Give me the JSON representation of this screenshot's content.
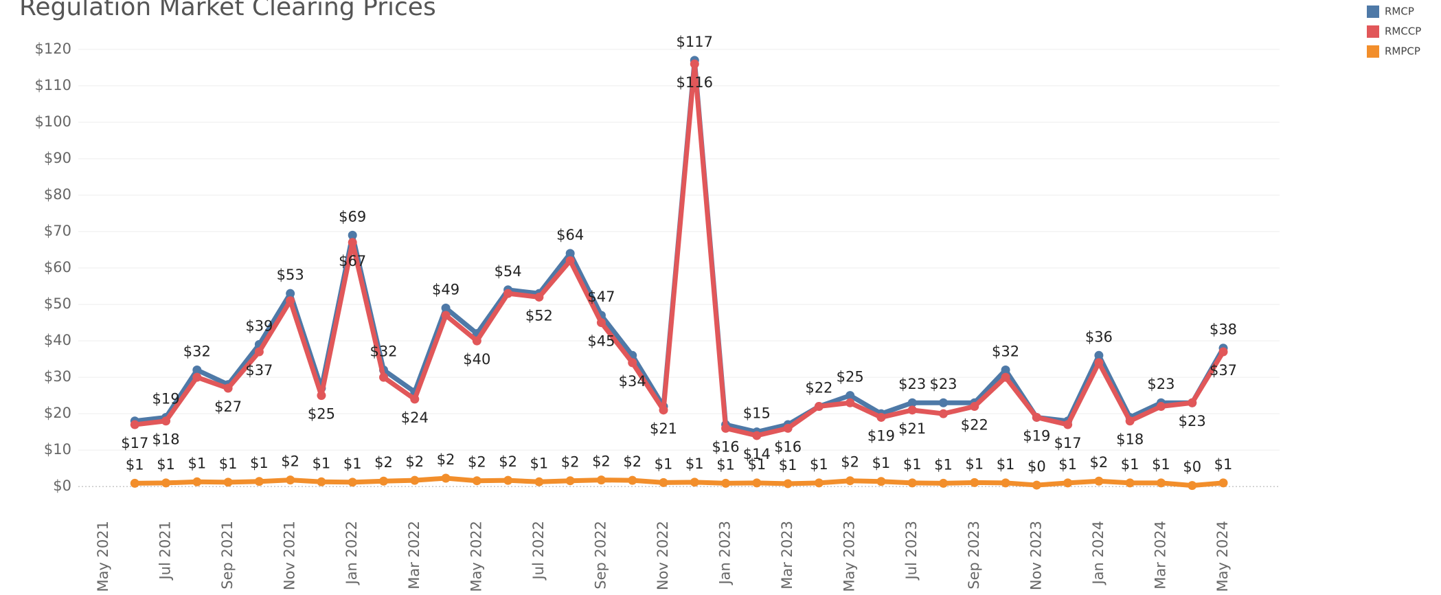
{
  "chart_data": {
    "type": "line",
    "title": "Regulation Market Clearing Prices",
    "categories": [
      "May 2021",
      null,
      "Jul 2021",
      null,
      "Sep 2021",
      null,
      "Nov 2021",
      null,
      "Jan 2022",
      null,
      "Mar 2022",
      null,
      "May 2022",
      null,
      "Jul 2022",
      null,
      "Sep 2022",
      null,
      "Nov 2022",
      null,
      "Jan 2023",
      null,
      "Mar 2023",
      null,
      "May 2023",
      null,
      "Jul 2023",
      null,
      "Sep 2023",
      null,
      "Nov 2023",
      null,
      "Jan 2024",
      null,
      "Mar 2024",
      null,
      "May 2024"
    ],
    "series": [
      {
        "name": "RMCP",
        "color": "#4e79a7",
        "values": [
          null,
          18,
          19,
          32,
          28,
          39,
          53,
          27,
          69,
          32,
          26,
          49,
          42,
          54,
          53,
          64,
          47,
          36,
          22,
          117,
          17,
          15,
          17,
          22,
          25,
          20,
          23,
          23,
          23,
          32,
          19,
          18,
          36,
          19,
          23,
          23,
          38
        ],
        "value_labels": [
          null,
          null,
          "$19",
          "$32",
          null,
          "$39",
          "$53",
          null,
          "$69",
          "$32",
          null,
          "$49",
          null,
          "$54",
          null,
          "$64",
          "$47",
          null,
          null,
          "$117",
          null,
          "$15",
          null,
          "$22",
          "$25",
          null,
          "$23",
          "$23",
          null,
          "$32",
          null,
          null,
          "$36",
          null,
          "$23",
          null,
          "$38"
        ]
      },
      {
        "name": "RMCCP",
        "color": "#e15759",
        "values": [
          null,
          17,
          18,
          30,
          27,
          37,
          51,
          25,
          67,
          30,
          24,
          47,
          40,
          53,
          52,
          62,
          45,
          34,
          21,
          116,
          16,
          14,
          16,
          22,
          23,
          19,
          21,
          20,
          22,
          30,
          19,
          17,
          34,
          18,
          22,
          23,
          37
        ],
        "value_labels": [
          null,
          "$17",
          "$18",
          null,
          "$27",
          "$37",
          null,
          "$25",
          "$67",
          null,
          "$24",
          null,
          "$40",
          null,
          "$52",
          null,
          "$45",
          "$34",
          "$21",
          "$116",
          "$16",
          "$14",
          "$16",
          null,
          null,
          "$19",
          "$21",
          null,
          "$22",
          null,
          "$19",
          "$17",
          null,
          "$18",
          null,
          "$23",
          "$37"
        ]
      },
      {
        "name": "RMPCP",
        "color": "#f28e2b",
        "values": [
          null,
          0.9,
          1.0,
          1.3,
          1.2,
          1.4,
          1.8,
          1.3,
          1.2,
          1.5,
          1.7,
          2.3,
          1.6,
          1.7,
          1.3,
          1.6,
          1.8,
          1.7,
          1.1,
          1.2,
          0.9,
          1.0,
          0.8,
          1.0,
          1.6,
          1.4,
          1.0,
          0.9,
          1.1,
          1.0,
          0.4,
          1.0,
          1.5,
          1.0,
          1.0,
          0.3,
          1.0
        ],
        "value_labels": [
          null,
          "$1",
          "$1",
          "$1",
          "$1",
          "$1",
          "$2",
          "$1",
          "$1",
          "$2",
          "$2",
          "$2",
          "$2",
          "$2",
          "$1",
          "$2",
          "$2",
          "$2",
          "$1",
          "$1",
          "$1",
          "$1",
          "$1",
          "$1",
          "$2",
          "$1",
          "$1",
          "$1",
          "$1",
          "$1",
          "$0",
          "$1",
          "$2",
          "$1",
          "$1",
          "$0",
          "$1"
        ]
      }
    ],
    "ylim": [
      -6,
      123
    ],
    "yticks": [
      {
        "value": 0,
        "label": "$0"
      },
      {
        "value": 10,
        "label": "$10"
      },
      {
        "value": 20,
        "label": "$20"
      },
      {
        "value": 30,
        "label": "$30"
      },
      {
        "value": 40,
        "label": "$40"
      },
      {
        "value": 50,
        "label": "$50"
      },
      {
        "value": 60,
        "label": "$60"
      },
      {
        "value": 70,
        "label": "$70"
      },
      {
        "value": 80,
        "label": "$80"
      },
      {
        "value": 90,
        "label": "$90"
      },
      {
        "value": 100,
        "label": "$100"
      },
      {
        "value": 110,
        "label": "$110"
      },
      {
        "value": 120,
        "label": "$120"
      }
    ],
    "grid": true
  }
}
